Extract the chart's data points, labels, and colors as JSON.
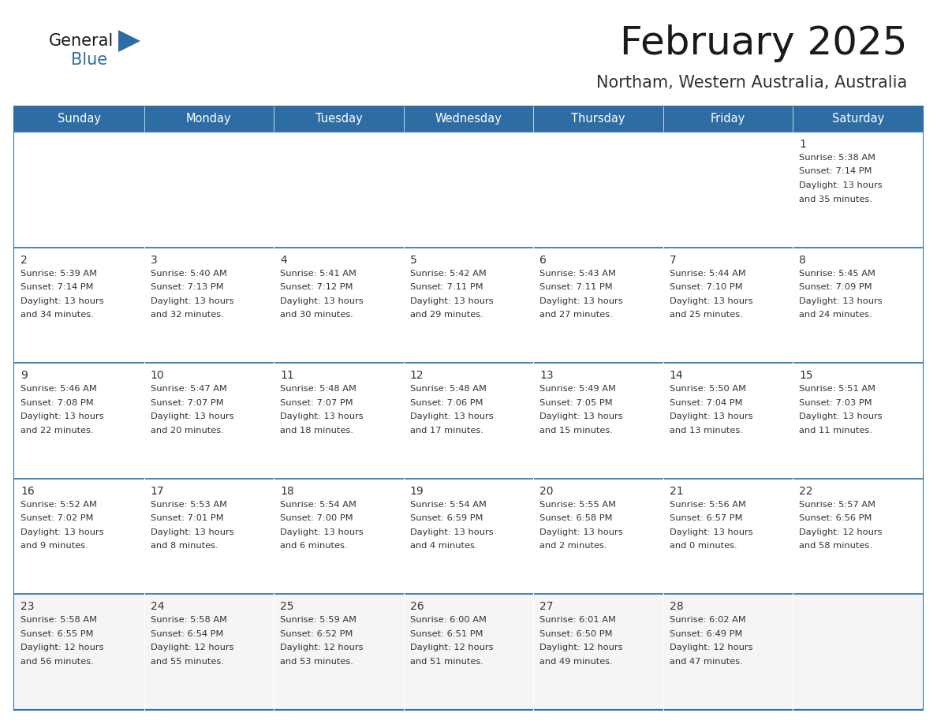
{
  "title": "February 2025",
  "subtitle": "Northam, Western Australia, Australia",
  "header_bg": "#2E6DA4",
  "header_text_color": "#FFFFFF",
  "cell_bg": "#FFFFFF",
  "cell_bg_last": "#F5F5F5",
  "cell_border_color": "#2E6DA4",
  "row_divider_color": "#2E6DA4",
  "title_color": "#1a1a1a",
  "subtitle_color": "#333333",
  "day_number_color": "#333333",
  "cell_text_color": "#333333",
  "logo_general_color": "#1a1a1a",
  "logo_blue_color": "#2E6DA4",
  "day_headers": [
    "Sunday",
    "Monday",
    "Tuesday",
    "Wednesday",
    "Thursday",
    "Friday",
    "Saturday"
  ],
  "calendar_data": [
    [
      null,
      null,
      null,
      null,
      null,
      null,
      {
        "day": 1,
        "rise": "5:38 AM",
        "set": "7:14 PM",
        "hours": 13,
        "mins": 35
      }
    ],
    [
      {
        "day": 2,
        "rise": "5:39 AM",
        "set": "7:14 PM",
        "hours": 13,
        "mins": 34
      },
      {
        "day": 3,
        "rise": "5:40 AM",
        "set": "7:13 PM",
        "hours": 13,
        "mins": 32
      },
      {
        "day": 4,
        "rise": "5:41 AM",
        "set": "7:12 PM",
        "hours": 13,
        "mins": 30
      },
      {
        "day": 5,
        "rise": "5:42 AM",
        "set": "7:11 PM",
        "hours": 13,
        "mins": 29
      },
      {
        "day": 6,
        "rise": "5:43 AM",
        "set": "7:11 PM",
        "hours": 13,
        "mins": 27
      },
      {
        "day": 7,
        "rise": "5:44 AM",
        "set": "7:10 PM",
        "hours": 13,
        "mins": 25
      },
      {
        "day": 8,
        "rise": "5:45 AM",
        "set": "7:09 PM",
        "hours": 13,
        "mins": 24
      }
    ],
    [
      {
        "day": 9,
        "rise": "5:46 AM",
        "set": "7:08 PM",
        "hours": 13,
        "mins": 22
      },
      {
        "day": 10,
        "rise": "5:47 AM",
        "set": "7:07 PM",
        "hours": 13,
        "mins": 20
      },
      {
        "day": 11,
        "rise": "5:48 AM",
        "set": "7:07 PM",
        "hours": 13,
        "mins": 18
      },
      {
        "day": 12,
        "rise": "5:48 AM",
        "set": "7:06 PM",
        "hours": 13,
        "mins": 17
      },
      {
        "day": 13,
        "rise": "5:49 AM",
        "set": "7:05 PM",
        "hours": 13,
        "mins": 15
      },
      {
        "day": 14,
        "rise": "5:50 AM",
        "set": "7:04 PM",
        "hours": 13,
        "mins": 13
      },
      {
        "day": 15,
        "rise": "5:51 AM",
        "set": "7:03 PM",
        "hours": 13,
        "mins": 11
      }
    ],
    [
      {
        "day": 16,
        "rise": "5:52 AM",
        "set": "7:02 PM",
        "hours": 13,
        "mins": 9
      },
      {
        "day": 17,
        "rise": "5:53 AM",
        "set": "7:01 PM",
        "hours": 13,
        "mins": 8
      },
      {
        "day": 18,
        "rise": "5:54 AM",
        "set": "7:00 PM",
        "hours": 13,
        "mins": 6
      },
      {
        "day": 19,
        "rise": "5:54 AM",
        "set": "6:59 PM",
        "hours": 13,
        "mins": 4
      },
      {
        "day": 20,
        "rise": "5:55 AM",
        "set": "6:58 PM",
        "hours": 13,
        "mins": 2
      },
      {
        "day": 21,
        "rise": "5:56 AM",
        "set": "6:57 PM",
        "hours": 13,
        "mins": 0
      },
      {
        "day": 22,
        "rise": "5:57 AM",
        "set": "6:56 PM",
        "hours": 12,
        "mins": 58
      }
    ],
    [
      {
        "day": 23,
        "rise": "5:58 AM",
        "set": "6:55 PM",
        "hours": 12,
        "mins": 56
      },
      {
        "day": 24,
        "rise": "5:58 AM",
        "set": "6:54 PM",
        "hours": 12,
        "mins": 55
      },
      {
        "day": 25,
        "rise": "5:59 AM",
        "set": "6:52 PM",
        "hours": 12,
        "mins": 53
      },
      {
        "day": 26,
        "rise": "6:00 AM",
        "set": "6:51 PM",
        "hours": 12,
        "mins": 51
      },
      {
        "day": 27,
        "rise": "6:01 AM",
        "set": "6:50 PM",
        "hours": 12,
        "mins": 49
      },
      {
        "day": 28,
        "rise": "6:02 AM",
        "set": "6:49 PM",
        "hours": 12,
        "mins": 47
      },
      null
    ]
  ]
}
